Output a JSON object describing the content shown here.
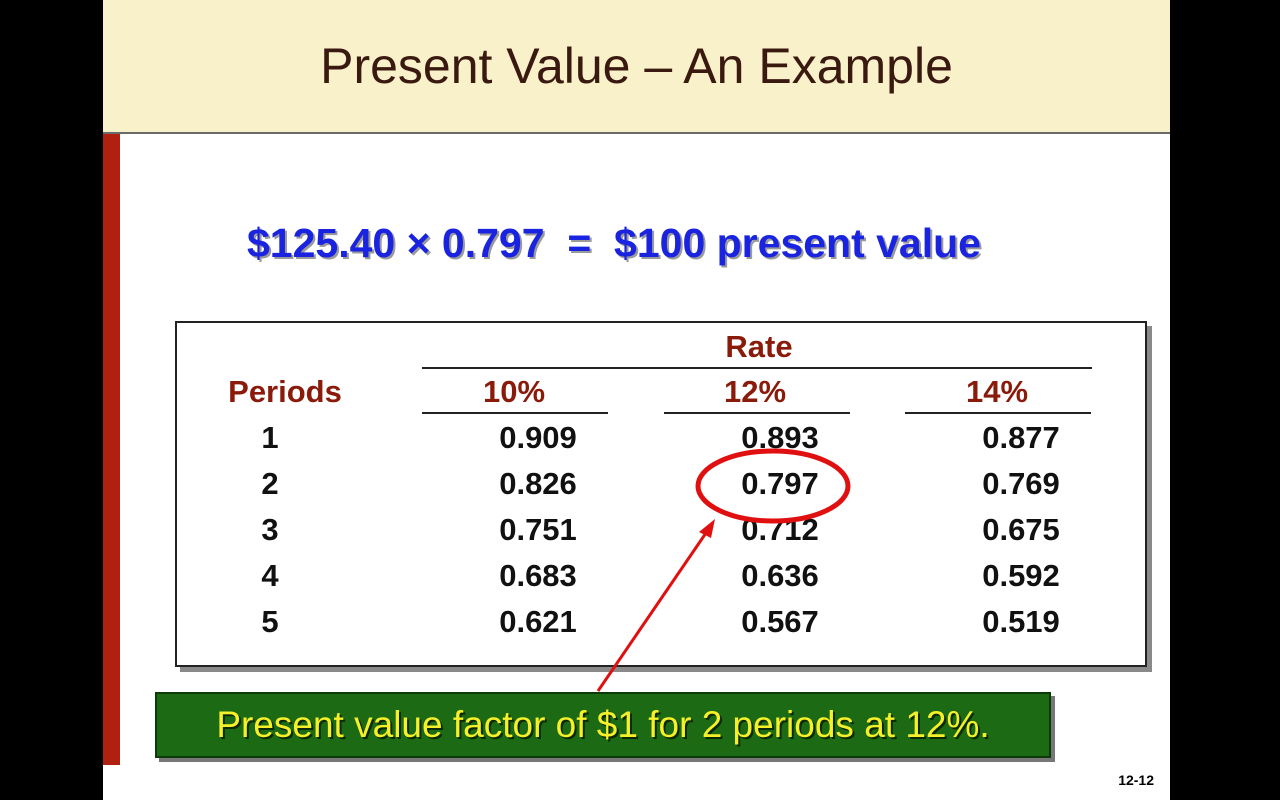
{
  "header": {
    "title": "Present Value – An Example"
  },
  "equation": "$125.40 × 0.797  =  $100 present value",
  "table": {
    "group_label": "Rate",
    "row_label": "Periods",
    "columns": [
      "10%",
      "12%",
      "14%"
    ],
    "rows": [
      [
        "1",
        "0.909",
        "0.893",
        "0.877"
      ],
      [
        "2",
        "0.826",
        "0.797",
        "0.769"
      ],
      [
        "3",
        "0.751",
        "0.712",
        "0.675"
      ],
      [
        "4",
        "0.683",
        "0.636",
        "0.592"
      ],
      [
        "5",
        "0.621",
        "0.567",
        "0.519"
      ]
    ]
  },
  "callout": "Present value factor of $1 for 2 periods at 12%.",
  "page_number": "12-12"
}
